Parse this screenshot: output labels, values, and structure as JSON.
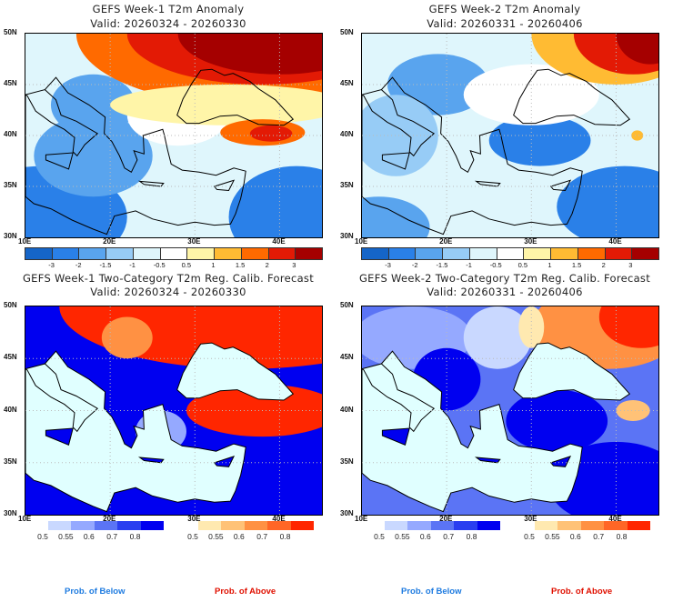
{
  "chart_data": [
    {
      "type": "heatmap",
      "title": "GEFS Week-1 T2m Anomaly",
      "subtitle": "Valid: 20260324 - 20260330",
      "xlim": [
        10,
        45
      ],
      "ylim": [
        30,
        50
      ],
      "x_ticks": [
        "10E",
        "20E",
        "30E",
        "40E"
      ],
      "y_ticks": [
        "30N",
        "35N",
        "40N",
        "45N",
        "50N"
      ],
      "colorbar_levels": [
        "-3",
        "-2",
        "-1.5",
        "-1",
        "-0.5",
        "0.5",
        "1",
        "1.5",
        "2",
        "3"
      ],
      "colorbar_colors": [
        "#1565c8",
        "#2a80e8",
        "#59a4ee",
        "#97ccf6",
        "#dff6fc",
        "#ffffff",
        "#fff5a8",
        "#ffbb33",
        "#ff6a00",
        "#e31a05",
        "#a50000"
      ],
      "summary": "Warm anomalies over Ukraine/Black Sea north and eastern Turkey; cool anomalies over Italy, central Mediterranean and North Africa"
    },
    {
      "type": "heatmap",
      "title": "GEFS Week-2 T2m Anomaly",
      "subtitle": "Valid: 20260331 - 20260406",
      "xlim": [
        10,
        45
      ],
      "ylim": [
        30,
        50
      ],
      "x_ticks": [
        "10E",
        "20E",
        "30E",
        "40E"
      ],
      "y_ticks": [
        "30N",
        "35N",
        "40N",
        "45N",
        "50N"
      ],
      "colorbar_levels": [
        "-3",
        "-2",
        "-1.5",
        "-1",
        "-0.5",
        "0.5",
        "1",
        "1.5",
        "2",
        "3"
      ],
      "colorbar_colors": [
        "#1565c8",
        "#2a80e8",
        "#59a4ee",
        "#97ccf6",
        "#dff6fc",
        "#ffffff",
        "#fff5a8",
        "#ffbb33",
        "#ff6a00",
        "#e31a05",
        "#a50000"
      ],
      "summary": "Warm anomalies over southern Russia; cool anomalies over Balkans, Anatolia and the Levant"
    },
    {
      "type": "heatmap",
      "title": "GEFS Week-1 Two-Category T2m Reg. Calib. Forecast",
      "subtitle": "Valid: 20260324 - 20260330",
      "xlim": [
        10,
        45
      ],
      "ylim": [
        30,
        50
      ],
      "x_ticks": [
        "10E",
        "20E",
        "30E",
        "40E"
      ],
      "y_ticks": [
        "30N",
        "35N",
        "40N",
        "45N",
        "50N"
      ],
      "below_levels": [
        "0.5",
        "0.55",
        "0.6",
        "0.7",
        "0.8"
      ],
      "below_colors": [
        "#c9d8ff",
        "#95a9ff",
        "#5b74f5",
        "#2a3ef0",
        "#0000f0"
      ],
      "above_levels": [
        "0.5",
        "0.55",
        "0.6",
        "0.7",
        "0.8"
      ],
      "above_colors": [
        "#ffe9b0",
        "#ffc277",
        "#ff9143",
        "#ff6626",
        "#ff2600"
      ],
      "below_label": "Prob. of Below",
      "above_label": "Prob. of Above"
    },
    {
      "type": "heatmap",
      "title": "GEFS Week-2 Two-Category T2m Reg. Calib. Forecast",
      "subtitle": "Valid: 20260331 - 20260406",
      "xlim": [
        10,
        45
      ],
      "ylim": [
        30,
        50
      ],
      "x_ticks": [
        "10E",
        "20E",
        "30E",
        "40E"
      ],
      "y_ticks": [
        "30N",
        "35N",
        "40N",
        "45N",
        "50N"
      ],
      "below_levels": [
        "0.5",
        "0.55",
        "0.6",
        "0.7",
        "0.8"
      ],
      "below_colors": [
        "#c9d8ff",
        "#95a9ff",
        "#5b74f5",
        "#2a3ef0",
        "#0000f0"
      ],
      "above_levels": [
        "0.5",
        "0.55",
        "0.6",
        "0.7",
        "0.8"
      ],
      "above_colors": [
        "#ffe9b0",
        "#ffc277",
        "#ff9143",
        "#ff6626",
        "#ff2600"
      ],
      "below_label": "Prob. of Below",
      "above_label": "Prob. of Above"
    }
  ],
  "colors": {
    "sea_fill": "#e0ffff",
    "below_label_color": "#1e7be0",
    "above_label_color": "#e01000"
  }
}
